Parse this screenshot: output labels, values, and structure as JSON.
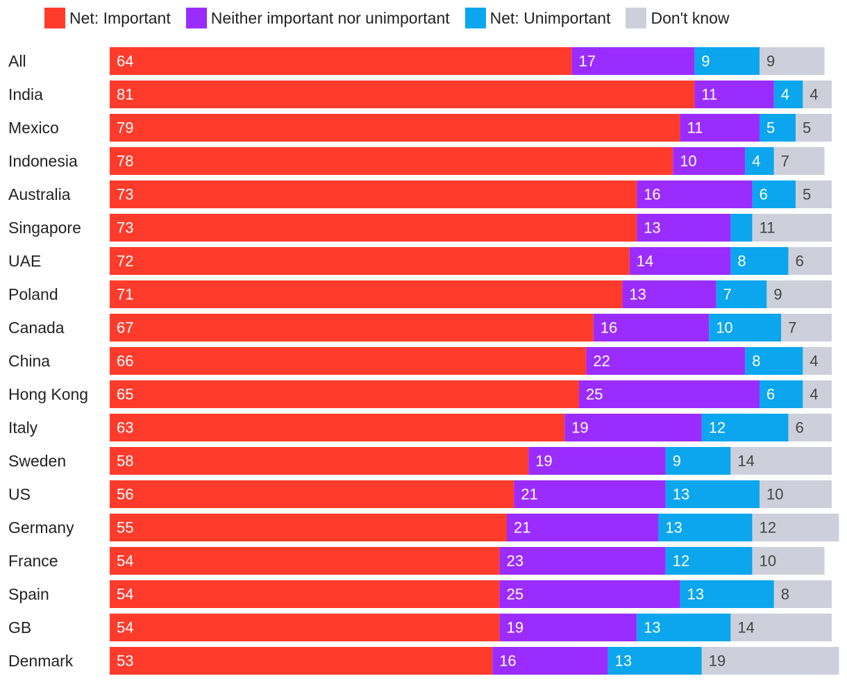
{
  "chart_data": {
    "type": "bar",
    "orientation": "horizontal",
    "stacked": true,
    "title": "",
    "xlabel": "",
    "ylabel": "",
    "legend_position": "top",
    "categories": [
      "All",
      "India",
      "Mexico",
      "Indonesia",
      "Australia",
      "Singapore",
      "UAE",
      "Poland",
      "Canada",
      "China",
      "Hong Kong",
      "Italy",
      "Sweden",
      "US",
      "Germany",
      "France",
      "Spain",
      "GB",
      "Denmark"
    ],
    "series": [
      {
        "name": "Net: Important",
        "color": "#ff3b2b",
        "values": [
          64,
          81,
          79,
          78,
          73,
          73,
          72,
          71,
          67,
          66,
          65,
          63,
          58,
          56,
          55,
          54,
          54,
          54,
          53
        ]
      },
      {
        "name": "Neither important nor unimportant",
        "color": "#9b2cff",
        "values": [
          17,
          11,
          11,
          10,
          16,
          13,
          14,
          13,
          16,
          22,
          25,
          19,
          19,
          21,
          21,
          23,
          25,
          19,
          16
        ]
      },
      {
        "name": "Net: Unimportant",
        "color": "#0ba6ee",
        "values": [
          9,
          4,
          5,
          4,
          6,
          3,
          8,
          7,
          10,
          8,
          6,
          12,
          9,
          13,
          13,
          12,
          13,
          13,
          13
        ]
      },
      {
        "name": "Don't know",
        "color": "#cdd0da",
        "values": [
          9,
          4,
          5,
          7,
          5,
          11,
          6,
          9,
          7,
          4,
          4,
          6,
          14,
          10,
          12,
          10,
          8,
          14,
          19
        ]
      }
    ],
    "value_label_colors": [
      "#ffffff",
      "#ffffff",
      "#ffffff",
      "#444444"
    ],
    "hidden_value_labels": [
      [
        5,
        2
      ]
    ],
    "value_labels": true
  }
}
